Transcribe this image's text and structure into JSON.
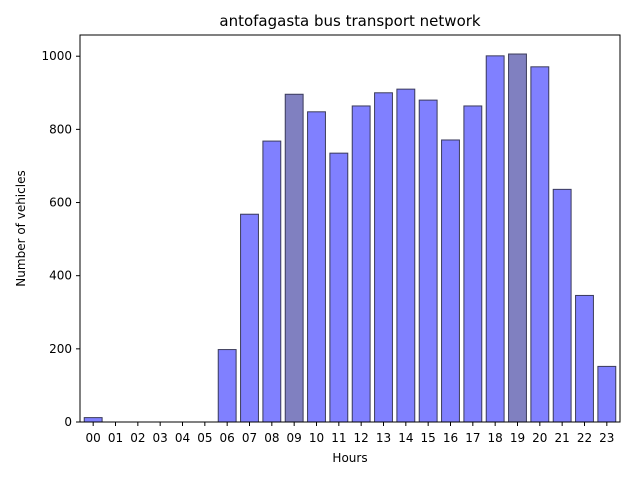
{
  "chart_data": {
    "type": "bar",
    "title": "antofagasta bus transport network",
    "xlabel": "Hours",
    "ylabel": "Number of vehicles",
    "categories": [
      "00",
      "01",
      "02",
      "03",
      "04",
      "05",
      "06",
      "07",
      "08",
      "09",
      "10",
      "11",
      "12",
      "13",
      "14",
      "15",
      "16",
      "17",
      "18",
      "19",
      "20",
      "21",
      "22",
      "23"
    ],
    "values": [
      12,
      0,
      0,
      0,
      0,
      0,
      198,
      568,
      768,
      896,
      848,
      735,
      864,
      900,
      910,
      880,
      771,
      864,
      1001,
      1006,
      971,
      636,
      346,
      152
    ],
    "highlighted": [
      "09",
      "19"
    ],
    "ylim": [
      0,
      1058
    ],
    "yticks": [
      0,
      200,
      400,
      600,
      800,
      1000
    ],
    "grid": false,
    "colors": {
      "bar": "#8080ff",
      "highlight": "#8080c0",
      "edge": "#3a3a5a"
    }
  }
}
